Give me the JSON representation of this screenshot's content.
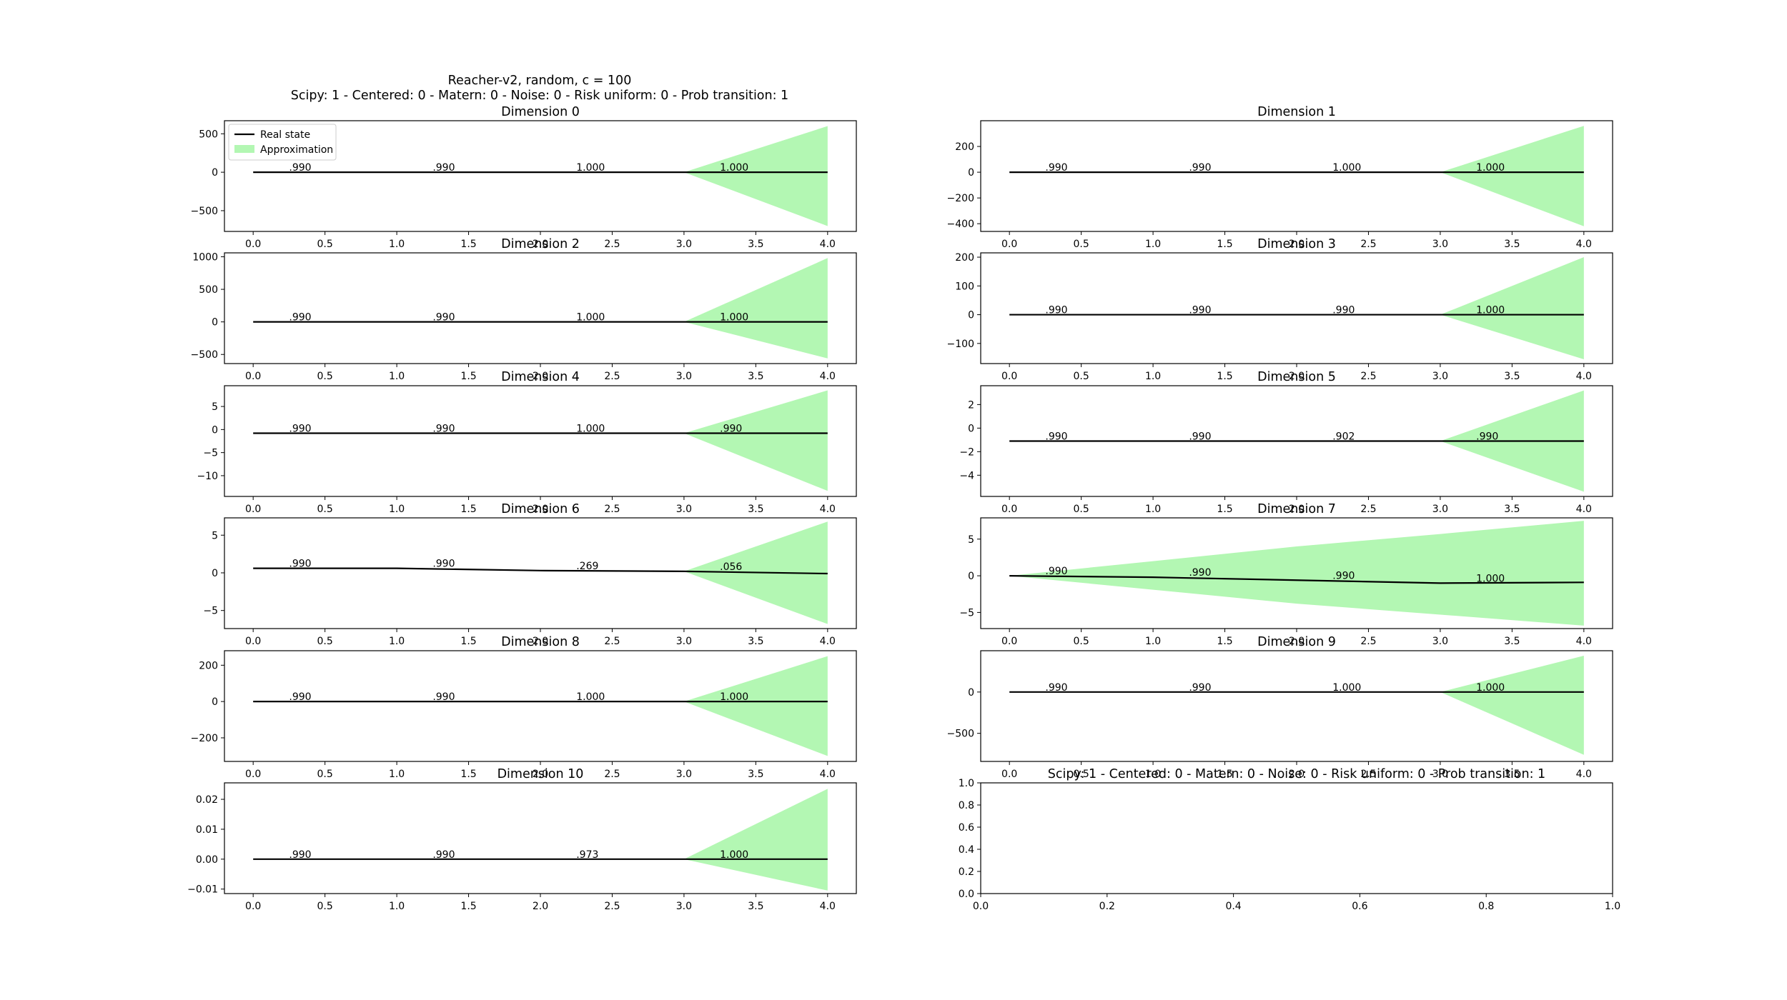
{
  "figure": {
    "suptitle_line1": "Reacher-v2, random, c = 100",
    "suptitle_line2": "Scipy: 1 - Centered: 0 - Matern: 0 - Noise: 0 - Risk uniform: 0 - Prob transition: 1",
    "legend": {
      "real_label": "Real state",
      "approx_label": "Approximation"
    },
    "colors": {
      "real": "#000000",
      "approx": "#b3f7b3"
    }
  },
  "chart_data": [
    {
      "type": "line",
      "title": "Dimension 0",
      "x": [
        0,
        1,
        2,
        3,
        4
      ],
      "real": [
        0,
        0,
        0,
        0,
        0
      ],
      "band_lower": [
        0,
        0,
        0,
        0,
        -700
      ],
      "band_upper": [
        0,
        0,
        0,
        0,
        600
      ],
      "ylim": [
        -770,
        670
      ],
      "yticks": [
        -500,
        0,
        500
      ],
      "yticklabels": [
        "−500",
        "0",
        "500"
      ],
      "xticks": [
        0.0,
        0.5,
        1.0,
        1.5,
        2.0,
        2.5,
        3.0,
        3.5,
        4.0
      ],
      "xticklabels": [
        "0.0",
        "0.5",
        "1.0",
        "1.5",
        "2.0",
        "2.5",
        "3.0",
        "3.5",
        "4.0"
      ],
      "annotations": [
        {
          "x": 0.25,
          "y": 0,
          "text": ".990"
        },
        {
          "x": 1.25,
          "y": 0,
          "text": ".990"
        },
        {
          "x": 2.25,
          "y": 0,
          "text": "1.000"
        },
        {
          "x": 3.25,
          "y": 0,
          "text": "1.000"
        }
      ],
      "legend": true
    },
    {
      "type": "line",
      "title": "Dimension 1",
      "x": [
        0,
        1,
        2,
        3,
        4
      ],
      "real": [
        0,
        0,
        0,
        0,
        0
      ],
      "band_lower": [
        0,
        0,
        0,
        0,
        -420
      ],
      "band_upper": [
        0,
        0,
        0,
        0,
        360
      ],
      "ylim": [
        -460,
        400
      ],
      "yticks": [
        -400,
        -200,
        0,
        200
      ],
      "yticklabels": [
        "−400",
        "−200",
        "0",
        "200"
      ],
      "xticks": [
        0.0,
        0.5,
        1.0,
        1.5,
        2.0,
        2.5,
        3.0,
        3.5,
        4.0
      ],
      "xticklabels": [
        "0.0",
        "0.5",
        "1.0",
        "1.5",
        "2.0",
        "2.5",
        "3.0",
        "3.5",
        "4.0"
      ],
      "annotations": [
        {
          "x": 0.25,
          "y": 0,
          "text": ".990"
        },
        {
          "x": 1.25,
          "y": 0,
          "text": ".990"
        },
        {
          "x": 2.25,
          "y": 0,
          "text": "1.000"
        },
        {
          "x": 3.25,
          "y": 0,
          "text": "1.000"
        }
      ]
    },
    {
      "type": "line",
      "title": "Dimension 2",
      "x": [
        0,
        1,
        2,
        3,
        4
      ],
      "real": [
        0,
        0,
        0,
        0,
        0
      ],
      "band_lower": [
        0,
        0,
        0,
        0,
        -560
      ],
      "band_upper": [
        0,
        0,
        0,
        0,
        980
      ],
      "ylim": [
        -640,
        1060
      ],
      "yticks": [
        -500,
        0,
        500,
        1000
      ],
      "yticklabels": [
        "−500",
        "0",
        "500",
        "1000"
      ],
      "xticks": [
        0.0,
        0.5,
        1.0,
        1.5,
        2.0,
        2.5,
        3.0,
        3.5,
        4.0
      ],
      "xticklabels": [
        "0.0",
        "0.5",
        "1.0",
        "1.5",
        "2.0",
        "2.5",
        "3.0",
        "3.5",
        "4.0"
      ],
      "annotations": [
        {
          "x": 0.25,
          "y": 0,
          "text": ".990"
        },
        {
          "x": 1.25,
          "y": 0,
          "text": ".990"
        },
        {
          "x": 2.25,
          "y": 0,
          "text": "1.000"
        },
        {
          "x": 3.25,
          "y": 0,
          "text": "1.000"
        }
      ]
    },
    {
      "type": "line",
      "title": "Dimension 3",
      "x": [
        0,
        1,
        2,
        3,
        4
      ],
      "real": [
        0,
        0,
        0,
        0,
        0
      ],
      "band_lower": [
        0,
        0,
        0,
        0,
        -155
      ],
      "band_upper": [
        0,
        0,
        0,
        0,
        200
      ],
      "ylim": [
        -170,
        215
      ],
      "yticks": [
        -100,
        0,
        100,
        200
      ],
      "yticklabels": [
        "−100",
        "0",
        "100",
        "200"
      ],
      "xticks": [
        0.0,
        0.5,
        1.0,
        1.5,
        2.0,
        2.5,
        3.0,
        3.5,
        4.0
      ],
      "xticklabels": [
        "0.0",
        "0.5",
        "1.0",
        "1.5",
        "2.0",
        "2.5",
        "3.0",
        "3.5",
        "4.0"
      ],
      "annotations": [
        {
          "x": 0.25,
          "y": 0,
          "text": ".990"
        },
        {
          "x": 1.25,
          "y": 0,
          "text": ".990"
        },
        {
          "x": 2.25,
          "y": 0,
          "text": ".990"
        },
        {
          "x": 3.25,
          "y": 0,
          "text": "1.000"
        }
      ]
    },
    {
      "type": "line",
      "title": "Dimension 4",
      "x": [
        0,
        1,
        2,
        3,
        4
      ],
      "real": [
        -0.8,
        -0.8,
        -0.8,
        -0.8,
        -0.8
      ],
      "band_lower": [
        -0.8,
        -0.8,
        -0.8,
        -0.8,
        -13.3
      ],
      "band_upper": [
        -0.8,
        -0.8,
        -0.8,
        -0.8,
        8.5
      ],
      "ylim": [
        -14.5,
        9.5
      ],
      "yticks": [
        -10,
        -5,
        0,
        5
      ],
      "yticklabels": [
        "−10",
        "−5",
        "0",
        "5"
      ],
      "xticks": [
        0.0,
        0.5,
        1.0,
        1.5,
        2.0,
        2.5,
        3.0,
        3.5,
        4.0
      ],
      "xticklabels": [
        "0.0",
        "0.5",
        "1.0",
        "1.5",
        "2.0",
        "2.5",
        "3.0",
        "3.5",
        "4.0"
      ],
      "annotations": [
        {
          "x": 0.25,
          "y": -0.8,
          "text": ".990"
        },
        {
          "x": 1.25,
          "y": -0.8,
          "text": ".990"
        },
        {
          "x": 2.25,
          "y": -0.8,
          "text": "1.000"
        },
        {
          "x": 3.25,
          "y": -0.8,
          "text": ".990"
        }
      ]
    },
    {
      "type": "line",
      "title": "Dimension 5",
      "x": [
        0,
        1,
        2,
        3,
        4
      ],
      "real": [
        -1.1,
        -1.1,
        -1.1,
        -1.1,
        -1.1
      ],
      "band_lower": [
        -1.1,
        -1.1,
        -1.1,
        -1.1,
        -5.4
      ],
      "band_upper": [
        -1.1,
        -1.1,
        -1.1,
        -1.1,
        3.2
      ],
      "ylim": [
        -5.8,
        3.6
      ],
      "yticks": [
        -4,
        -2,
        0,
        2
      ],
      "yticklabels": [
        "−4",
        "−2",
        "0",
        "2"
      ],
      "xticks": [
        0.0,
        0.5,
        1.0,
        1.5,
        2.0,
        2.5,
        3.0,
        3.5,
        4.0
      ],
      "xticklabels": [
        "0.0",
        "0.5",
        "1.0",
        "1.5",
        "2.0",
        "2.5",
        "3.0",
        "3.5",
        "4.0"
      ],
      "annotations": [
        {
          "x": 0.25,
          "y": -1.1,
          "text": ".990"
        },
        {
          "x": 1.25,
          "y": -1.1,
          "text": ".990"
        },
        {
          "x": 2.25,
          "y": -1.1,
          "text": ".902"
        },
        {
          "x": 3.25,
          "y": -1.1,
          "text": ".990"
        }
      ]
    },
    {
      "type": "line",
      "title": "Dimension 6",
      "x": [
        0,
        1,
        2,
        3,
        4
      ],
      "real": [
        0.6,
        0.6,
        0.3,
        0.2,
        -0.1
      ],
      "band_lower": [
        0.6,
        0.6,
        0.3,
        0.2,
        -6.8
      ],
      "band_upper": [
        0.6,
        0.6,
        0.3,
        0.2,
        6.8
      ],
      "ylim": [
        -7.4,
        7.3
      ],
      "yticks": [
        -5,
        0,
        5
      ],
      "yticklabels": [
        "−5",
        "0",
        "5"
      ],
      "xticks": [
        0.0,
        0.5,
        1.0,
        1.5,
        2.0,
        2.5,
        3.0,
        3.5,
        4.0
      ],
      "xticklabels": [
        "0.0",
        "0.5",
        "1.0",
        "1.5",
        "2.0",
        "2.5",
        "3.0",
        "3.5",
        "4.0"
      ],
      "annotations": [
        {
          "x": 0.25,
          "y": 0.6,
          "text": ".990"
        },
        {
          "x": 1.25,
          "y": 0.6,
          "text": ".990"
        },
        {
          "x": 2.25,
          "y": 0.3,
          "text": ".269"
        },
        {
          "x": 3.25,
          "y": 0.2,
          "text": ".056"
        }
      ]
    },
    {
      "type": "line",
      "title": "Dimension 7",
      "x": [
        0,
        1,
        2,
        3,
        4
      ],
      "real": [
        0,
        -0.2,
        -0.6,
        -1.0,
        -0.9
      ],
      "band_lower": [
        0,
        -1.9,
        -3.8,
        -5.3,
        -6.8
      ],
      "band_upper": [
        0,
        2.0,
        4.0,
        5.7,
        7.5
      ],
      "ylim": [
        -7.2,
        7.9
      ],
      "yticks": [
        -5,
        0,
        5
      ],
      "yticklabels": [
        "−5",
        "0",
        "5"
      ],
      "xticks": [
        0.0,
        0.5,
        1.0,
        1.5,
        2.0,
        2.5,
        3.0,
        3.5,
        4.0
      ],
      "xticklabels": [
        "0.0",
        "0.5",
        "1.0",
        "1.5",
        "2.0",
        "2.5",
        "3.0",
        "3.5",
        "4.0"
      ],
      "annotations": [
        {
          "x": 0.25,
          "y": 0,
          "text": ".990"
        },
        {
          "x": 1.25,
          "y": -0.2,
          "text": ".990"
        },
        {
          "x": 2.25,
          "y": -0.6,
          "text": ".990"
        },
        {
          "x": 3.25,
          "y": -1.0,
          "text": "1.000"
        }
      ]
    },
    {
      "type": "line",
      "title": "Dimension 8",
      "x": [
        0,
        1,
        2,
        3,
        4
      ],
      "real": [
        0,
        0,
        0,
        0,
        0
      ],
      "band_lower": [
        0,
        0,
        0,
        0,
        -300
      ],
      "band_upper": [
        0,
        0,
        0,
        0,
        250
      ],
      "ylim": [
        -330,
        280
      ],
      "yticks": [
        -200,
        0,
        200
      ],
      "yticklabels": [
        "−200",
        "0",
        "200"
      ],
      "xticks": [
        0.0,
        0.5,
        1.0,
        1.5,
        2.0,
        2.5,
        3.0,
        3.5,
        4.0
      ],
      "xticklabels": [
        "0.0",
        "0.5",
        "1.0",
        "1.5",
        "2.0",
        "2.5",
        "3.0",
        "3.5",
        "4.0"
      ],
      "annotations": [
        {
          "x": 0.25,
          "y": 0,
          "text": ".990"
        },
        {
          "x": 1.25,
          "y": 0,
          "text": ".990"
        },
        {
          "x": 2.25,
          "y": 0,
          "text": "1.000"
        },
        {
          "x": 3.25,
          "y": 0,
          "text": "1.000"
        }
      ]
    },
    {
      "type": "line",
      "title": "Dimension 9",
      "x": [
        0,
        1,
        2,
        3,
        4
      ],
      "real": [
        0,
        0,
        0,
        0,
        0
      ],
      "band_lower": [
        0,
        0,
        0,
        0,
        -760
      ],
      "band_upper": [
        0,
        0,
        0,
        0,
        440
      ],
      "ylim": [
        -840,
        500
      ],
      "yticks": [
        -500,
        0
      ],
      "yticklabels": [
        "−500",
        "0"
      ],
      "xticks": [
        0.0,
        0.5,
        1.0,
        1.5,
        2.0,
        2.5,
        3.0,
        3.5,
        4.0
      ],
      "xticklabels": [
        "0.0",
        "0.5",
        "1.0",
        "1.5",
        "2.0",
        "2.5",
        "3.0",
        "3.5",
        "4.0"
      ],
      "annotations": [
        {
          "x": 0.25,
          "y": 0,
          "text": ".990"
        },
        {
          "x": 1.25,
          "y": 0,
          "text": ".990"
        },
        {
          "x": 2.25,
          "y": 0,
          "text": "1.000"
        },
        {
          "x": 3.25,
          "y": 0,
          "text": "1.000"
        }
      ]
    },
    {
      "type": "line",
      "title": "Dimension 10",
      "x": [
        0,
        1,
        2,
        3,
        4
      ],
      "real": [
        0,
        0,
        0,
        0,
        0
      ],
      "band_lower": [
        0,
        0,
        0,
        0,
        -0.0105
      ],
      "band_upper": [
        0,
        0,
        0,
        0,
        0.0235
      ],
      "ylim": [
        -0.0115,
        0.0255
      ],
      "yticks": [
        -0.01,
        0.0,
        0.01,
        0.02
      ],
      "yticklabels": [
        "−0.01",
        "0.00",
        "0.01",
        "0.02"
      ],
      "xticks": [
        0.0,
        0.5,
        1.0,
        1.5,
        2.0,
        2.5,
        3.0,
        3.5,
        4.0
      ],
      "xticklabels": [
        "0.0",
        "0.5",
        "1.0",
        "1.5",
        "2.0",
        "2.5",
        "3.0",
        "3.5",
        "4.0"
      ],
      "annotations": [
        {
          "x": 0.25,
          "y": 0,
          "text": ".990"
        },
        {
          "x": 1.25,
          "y": 0,
          "text": ".990"
        },
        {
          "x": 2.25,
          "y": 0,
          "text": ".973"
        },
        {
          "x": 3.25,
          "y": 0,
          "text": "1.000"
        }
      ]
    },
    {
      "type": "line",
      "title": "Scipy: 1 - Centered: 0 - Matern: 0 - Noise: 0 - Risk uniform: 0 - Prob transition: 1",
      "x": [],
      "real": [],
      "band_lower": [],
      "band_upper": [],
      "xlim": [
        0,
        1
      ],
      "ylim": [
        0,
        1
      ],
      "yticks": [
        0.0,
        0.2,
        0.4,
        0.6,
        0.8,
        1.0
      ],
      "yticklabels": [
        "0.0",
        "0.2",
        "0.4",
        "0.6",
        "0.8",
        "1.0"
      ],
      "xticks": [
        0.0,
        0.2,
        0.4,
        0.6,
        0.8,
        1.0
      ],
      "xticklabels": [
        "0.0",
        "0.2",
        "0.4",
        "0.6",
        "0.8",
        "1.0"
      ],
      "annotations": []
    }
  ]
}
